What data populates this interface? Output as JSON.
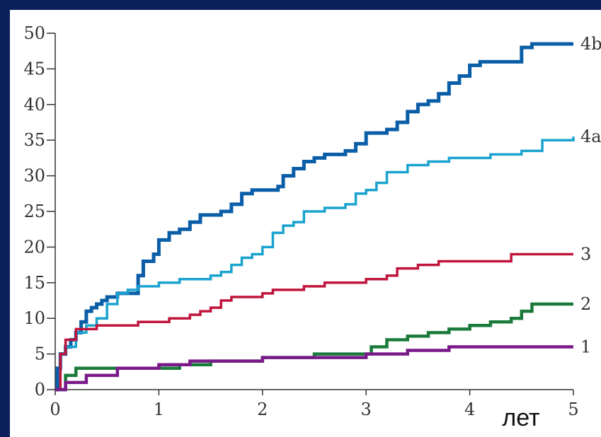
{
  "chart_data": {
    "type": "line",
    "step": true,
    "xlim": [
      0,
      5
    ],
    "ylim": [
      0,
      50
    ],
    "x_ticks": [
      "0",
      "1",
      "2",
      "3",
      "4",
      "5"
    ],
    "y_ticks": [
      "0",
      "5",
      "10",
      "15",
      "20",
      "25",
      "30",
      "35",
      "40",
      "45",
      "50"
    ],
    "x_unit": "лет",
    "grid": false,
    "series": [
      {
        "name": "4b",
        "color": "#0a5ea8",
        "points": [
          [
            0,
            0
          ],
          [
            0.02,
            3
          ],
          [
            0.05,
            5
          ],
          [
            0.1,
            6
          ],
          [
            0.15,
            7
          ],
          [
            0.2,
            8
          ],
          [
            0.25,
            9.5
          ],
          [
            0.3,
            11
          ],
          [
            0.35,
            11.5
          ],
          [
            0.4,
            12
          ],
          [
            0.45,
            12.5
          ],
          [
            0.5,
            13
          ],
          [
            0.6,
            13.5
          ],
          [
            0.7,
            13.5
          ],
          [
            0.8,
            16
          ],
          [
            0.85,
            18
          ],
          [
            0.95,
            19
          ],
          [
            1.0,
            21
          ],
          [
            1.1,
            22
          ],
          [
            1.2,
            22.5
          ],
          [
            1.3,
            23.5
          ],
          [
            1.4,
            24.5
          ],
          [
            1.5,
            24.5
          ],
          [
            1.6,
            25
          ],
          [
            1.7,
            26
          ],
          [
            1.8,
            27.5
          ],
          [
            1.9,
            28
          ],
          [
            2.0,
            28
          ],
          [
            2.15,
            28.5
          ],
          [
            2.2,
            30
          ],
          [
            2.3,
            31
          ],
          [
            2.4,
            32
          ],
          [
            2.5,
            32.5
          ],
          [
            2.6,
            33
          ],
          [
            2.8,
            33.5
          ],
          [
            2.9,
            34.5
          ],
          [
            3.0,
            36
          ],
          [
            3.2,
            36.5
          ],
          [
            3.3,
            37.5
          ],
          [
            3.4,
            39
          ],
          [
            3.5,
            40
          ],
          [
            3.6,
            40.5
          ],
          [
            3.7,
            41.5
          ],
          [
            3.8,
            43
          ],
          [
            3.9,
            44
          ],
          [
            4.0,
            45.5
          ],
          [
            4.1,
            46
          ],
          [
            4.2,
            46
          ],
          [
            4.5,
            48
          ],
          [
            4.6,
            48.5
          ],
          [
            5.0,
            48.5
          ]
        ]
      },
      {
        "name": "4a",
        "color": "#1aa3cf",
        "points": [
          [
            0,
            0
          ],
          [
            0.05,
            5
          ],
          [
            0.1,
            6
          ],
          [
            0.2,
            8
          ],
          [
            0.3,
            9
          ],
          [
            0.4,
            10
          ],
          [
            0.5,
            12
          ],
          [
            0.6,
            13.5
          ],
          [
            0.7,
            14
          ],
          [
            0.8,
            14.5
          ],
          [
            1.0,
            15
          ],
          [
            1.2,
            15.5
          ],
          [
            1.5,
            16
          ],
          [
            1.6,
            16.5
          ],
          [
            1.7,
            17.5
          ],
          [
            1.8,
            18.5
          ],
          [
            1.9,
            19
          ],
          [
            2.0,
            20
          ],
          [
            2.1,
            22
          ],
          [
            2.2,
            23
          ],
          [
            2.3,
            23.5
          ],
          [
            2.4,
            25
          ],
          [
            2.5,
            25
          ],
          [
            2.6,
            25.5
          ],
          [
            2.7,
            25.5
          ],
          [
            2.8,
            26
          ],
          [
            2.9,
            27.5
          ],
          [
            3.0,
            28
          ],
          [
            3.1,
            29
          ],
          [
            3.2,
            30.5
          ],
          [
            3.4,
            31.5
          ],
          [
            3.6,
            32
          ],
          [
            3.8,
            32.5
          ],
          [
            4.0,
            32.5
          ],
          [
            4.2,
            33
          ],
          [
            4.5,
            33.5
          ],
          [
            4.7,
            35
          ],
          [
            5.0,
            35.5
          ]
        ]
      },
      {
        "name": "3",
        "color": "#c0143c",
        "points": [
          [
            0,
            0
          ],
          [
            0.05,
            5
          ],
          [
            0.1,
            7
          ],
          [
            0.2,
            8.5
          ],
          [
            0.4,
            9
          ],
          [
            0.6,
            9
          ],
          [
            0.8,
            9.5
          ],
          [
            1.0,
            9.5
          ],
          [
            1.1,
            10
          ],
          [
            1.3,
            10.5
          ],
          [
            1.4,
            11
          ],
          [
            1.5,
            11.5
          ],
          [
            1.6,
            12.5
          ],
          [
            1.7,
            13
          ],
          [
            1.9,
            13
          ],
          [
            2.0,
            13.5
          ],
          [
            2.1,
            14
          ],
          [
            2.3,
            14
          ],
          [
            2.4,
            14.5
          ],
          [
            2.6,
            15
          ],
          [
            2.8,
            15
          ],
          [
            3.0,
            15.5
          ],
          [
            3.2,
            16
          ],
          [
            3.3,
            17
          ],
          [
            3.5,
            17.5
          ],
          [
            3.7,
            18
          ],
          [
            4.0,
            18
          ],
          [
            4.4,
            19
          ],
          [
            5.0,
            19
          ]
        ]
      },
      {
        "name": "2",
        "color": "#1a7a3a",
        "points": [
          [
            0,
            0
          ],
          [
            0.1,
            2
          ],
          [
            0.2,
            3
          ],
          [
            0.5,
            3
          ],
          [
            1.0,
            3
          ],
          [
            1.2,
            3.5
          ],
          [
            1.5,
            4
          ],
          [
            2.0,
            4.5
          ],
          [
            2.5,
            5
          ],
          [
            3.0,
            5
          ],
          [
            3.05,
            6
          ],
          [
            3.2,
            7
          ],
          [
            3.4,
            7.5
          ],
          [
            3.6,
            8
          ],
          [
            3.8,
            8.5
          ],
          [
            4.0,
            9
          ],
          [
            4.2,
            9.5
          ],
          [
            4.4,
            10
          ],
          [
            4.5,
            11
          ],
          [
            4.6,
            12
          ],
          [
            5.0,
            12
          ]
        ]
      },
      {
        "name": "1",
        "color": "#7a1a8a",
        "points": [
          [
            0,
            0
          ],
          [
            0.1,
            1
          ],
          [
            0.3,
            2
          ],
          [
            0.6,
            3
          ],
          [
            1.0,
            3.5
          ],
          [
            1.3,
            4
          ],
          [
            1.6,
            4
          ],
          [
            2.0,
            4.5
          ],
          [
            2.5,
            4.5
          ],
          [
            3.0,
            5
          ],
          [
            3.4,
            5.5
          ],
          [
            3.8,
            6
          ],
          [
            4.0,
            6
          ],
          [
            4.5,
            6
          ],
          [
            5.0,
            6
          ]
        ]
      }
    ]
  }
}
